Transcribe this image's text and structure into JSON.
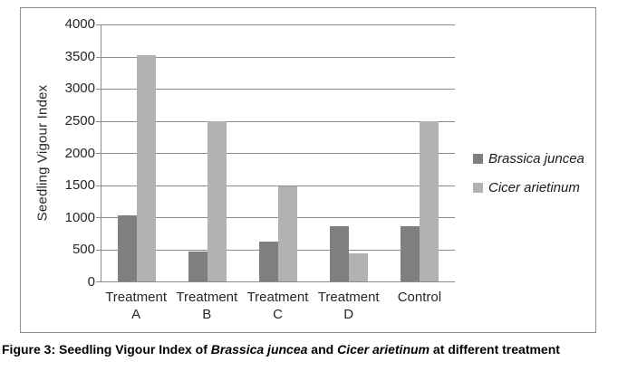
{
  "caption": {
    "prefix": "Figure 3: Seedling Vigour Index of ",
    "species1": "Brassica juncea",
    "connector": " and ",
    "species2": "Cicer arietinum",
    "suffix": " at different treatment"
  },
  "chart_data": {
    "type": "bar",
    "title": "",
    "xlabel": "",
    "ylabel": "Seedling Vigour Index",
    "categories": [
      "Treatment A",
      "Treatment B",
      "Treatment C",
      "Treatment D",
      "Control"
    ],
    "series": [
      {
        "name": "Brassica juncea",
        "color": "#7f7f7f",
        "values": [
          1030,
          460,
          615,
          865,
          865
        ]
      },
      {
        "name": "Cicer arietinum",
        "color": "#b2b2b2",
        "values": [
          3520,
          2500,
          1480,
          430,
          2500
        ]
      }
    ],
    "ylim": [
      0,
      4000
    ],
    "yticks": [
      0,
      500,
      1000,
      1500,
      2000,
      2500,
      3000,
      3500,
      4000
    ],
    "grid": true,
    "legend_position": "right",
    "axis_color": "#8c8c8c",
    "background": "#ffffff"
  }
}
